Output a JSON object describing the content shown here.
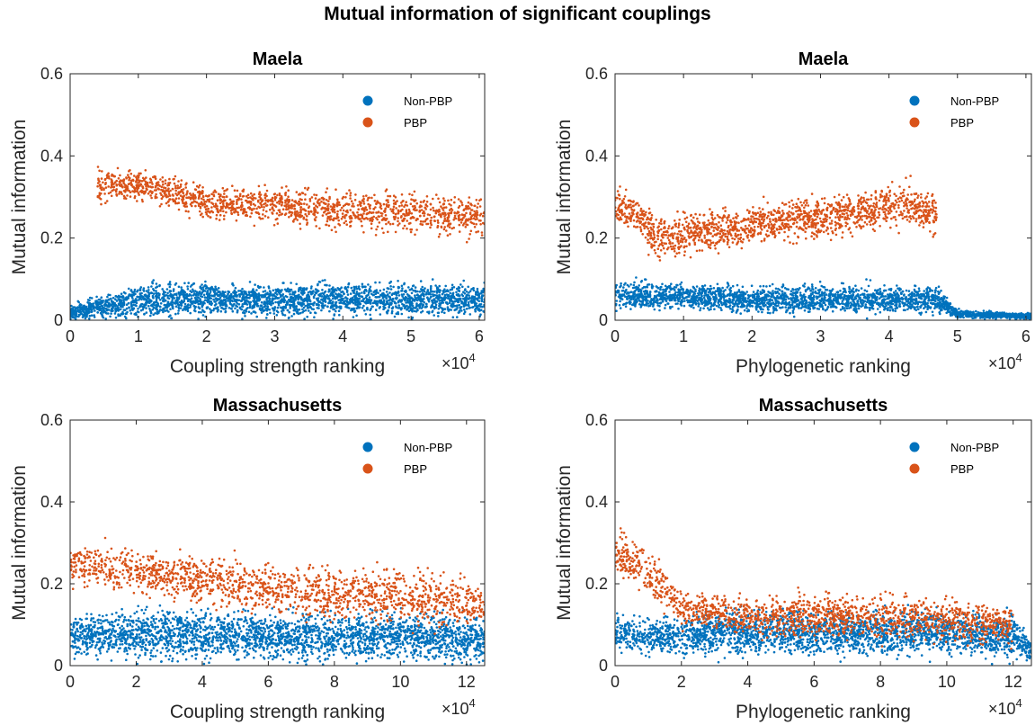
{
  "figure_title": "Mutual information of significant couplings",
  "colors": {
    "non_pbp": "#0072BD",
    "pbp": "#D95319",
    "axis": "#262626"
  },
  "exponent_label": "×10",
  "exponent_power": "4",
  "chart_data": [
    {
      "type": "scatter",
      "title": "Maela",
      "xlabel": "Coupling strength ranking",
      "ylabel": "Mutual information",
      "xlim": [
        0,
        60800
      ],
      "ylim": [
        0,
        0.6
      ],
      "xticks": [
        0,
        10000,
        20000,
        30000,
        40000,
        50000,
        60000
      ],
      "xtick_labels": [
        "0",
        "1",
        "2",
        "3",
        "4",
        "5",
        "6"
      ],
      "yticks": [
        0,
        0.2,
        0.4,
        0.6
      ],
      "ytick_labels": [
        "0",
        "0.2",
        "0.4",
        "0.6"
      ],
      "legend_placement": "top-right",
      "series": [
        {
          "name": "Non-PBP",
          "color": "#0072BD",
          "x": [
            0,
            8000,
            10000,
            20000,
            30000,
            40000,
            50000,
            60800
          ],
          "y": [
            0.02,
            0.04,
            0.05,
            0.05,
            0.05,
            0.05,
            0.05,
            0.05
          ],
          "y_spread": [
            0.03,
            0.05,
            0.06,
            0.06,
            0.06,
            0.06,
            0.06,
            0.06
          ]
        },
        {
          "name": "PBP",
          "color": "#D95319",
          "x": [
            4000,
            10000,
            15000,
            20000,
            30000,
            40000,
            50000,
            60800
          ],
          "y": [
            0.33,
            0.33,
            0.31,
            0.29,
            0.28,
            0.27,
            0.26,
            0.25
          ],
          "y_spread": [
            0.06,
            0.05,
            0.06,
            0.06,
            0.07,
            0.07,
            0.07,
            0.07
          ]
        }
      ]
    },
    {
      "type": "scatter",
      "title": "Maela",
      "xlabel": "Phylogenetic ranking",
      "ylabel": "Mutual information",
      "xlim": [
        0,
        60800
      ],
      "ylim": [
        0,
        0.6
      ],
      "xticks": [
        0,
        10000,
        20000,
        30000,
        40000,
        50000,
        60000
      ],
      "xtick_labels": [
        "0",
        "1",
        "2",
        "3",
        "4",
        "5",
        "6"
      ],
      "yticks": [
        0,
        0.2,
        0.4,
        0.6
      ],
      "ytick_labels": [
        "0",
        "0.2",
        "0.4",
        "0.6"
      ],
      "legend_placement": "top-right",
      "series": [
        {
          "name": "Non-PBP",
          "color": "#0072BD",
          "x": [
            0,
            5000,
            20000,
            40000,
            47000,
            50000,
            60800
          ],
          "y": [
            0.06,
            0.06,
            0.05,
            0.05,
            0.05,
            0.015,
            0.01
          ],
          "y_spread": [
            0.05,
            0.05,
            0.05,
            0.05,
            0.05,
            0.015,
            0.01
          ]
        },
        {
          "name": "PBP",
          "color": "#D95319",
          "x": [
            0,
            3000,
            6000,
            38000,
            42000,
            47000
          ],
          "y": [
            0.28,
            0.26,
            0.2,
            0.27,
            0.28,
            0.26
          ],
          "y_spread": [
            0.06,
            0.07,
            0.08,
            0.07,
            0.08,
            0.07
          ]
        }
      ]
    },
    {
      "type": "scatter",
      "title": "Massachusetts",
      "xlabel": "Coupling strength ranking",
      "ylabel": "Mutual information",
      "xlim": [
        0,
        125500
      ],
      "ylim": [
        0,
        0.6
      ],
      "xticks": [
        0,
        20000,
        40000,
        60000,
        80000,
        100000,
        120000
      ],
      "xtick_labels": [
        "0",
        "2",
        "4",
        "6",
        "8",
        "10",
        "12"
      ],
      "yticks": [
        0,
        0.2,
        0.4,
        0.6
      ],
      "ytick_labels": [
        "0",
        "0.2",
        "0.4",
        "0.6"
      ],
      "legend_placement": "top-right",
      "series": [
        {
          "name": "Non-PBP",
          "color": "#0072BD",
          "x": [
            0,
            20000,
            60000,
            100000,
            125500
          ],
          "y": [
            0.07,
            0.08,
            0.07,
            0.07,
            0.06
          ],
          "y_spread": [
            0.07,
            0.09,
            0.09,
            0.09,
            0.08
          ]
        },
        {
          "name": "PBP",
          "color": "#D95319",
          "x": [
            0,
            10000,
            30000,
            60000,
            90000,
            125500
          ],
          "y": [
            0.25,
            0.24,
            0.22,
            0.19,
            0.17,
            0.15
          ],
          "y_spread": [
            0.08,
            0.08,
            0.09,
            0.1,
            0.1,
            0.1
          ]
        }
      ]
    },
    {
      "type": "scatter",
      "title": "Massachusetts",
      "xlabel": "Phylogenetic ranking",
      "ylabel": "Mutual information",
      "xlim": [
        0,
        125500
      ],
      "ylim": [
        0,
        0.6
      ],
      "xticks": [
        0,
        20000,
        40000,
        60000,
        80000,
        100000,
        120000
      ],
      "xtick_labels": [
        "0",
        "2",
        "4",
        "6",
        "8",
        "10",
        "12"
      ],
      "yticks": [
        0,
        0.2,
        0.4,
        0.6
      ],
      "ytick_labels": [
        "0",
        "0.2",
        "0.4",
        "0.6"
      ],
      "legend_placement": "top-right",
      "series": [
        {
          "name": "Non-PBP",
          "color": "#0072BD",
          "x": [
            0,
            10000,
            30000,
            60000,
            90000,
            120000,
            125500
          ],
          "y": [
            0.08,
            0.07,
            0.08,
            0.08,
            0.08,
            0.07,
            0.04
          ],
          "y_spread": [
            0.07,
            0.06,
            0.08,
            0.08,
            0.08,
            0.08,
            0.04
          ]
        },
        {
          "name": "PBP",
          "color": "#D95319",
          "x": [
            0,
            8000,
            15000,
            20000,
            40000,
            70000,
            100000,
            120000
          ],
          "y": [
            0.27,
            0.24,
            0.18,
            0.14,
            0.12,
            0.12,
            0.11,
            0.1
          ],
          "y_spread": [
            0.08,
            0.08,
            0.07,
            0.06,
            0.07,
            0.08,
            0.08,
            0.08
          ]
        }
      ]
    }
  ]
}
